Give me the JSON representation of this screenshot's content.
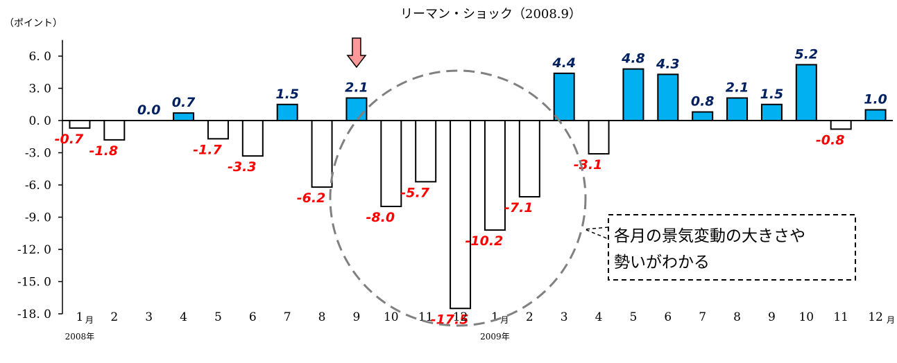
{
  "chart_data": {
    "type": "bar",
    "y_unit_label": "（ポイント）",
    "top_annotation": "リーマン・ショック（2008.9）",
    "ylim": [
      -18,
      7.5
    ],
    "yticks": [
      "6. 0",
      "3. 0",
      "0. 0",
      "-3. 0",
      "-6. 0",
      "-9. 0",
      "-12. 0",
      "-15. 0",
      "-18. 0"
    ],
    "ytick_values": [
      6,
      3,
      0,
      -3,
      -6,
      -9,
      -12,
      -15,
      -18
    ],
    "categories": [
      "1",
      "2",
      "3",
      "4",
      "5",
      "6",
      "7",
      "8",
      "9",
      "10",
      "11",
      "12",
      "1",
      "2",
      "3",
      "4",
      "5",
      "6",
      "7",
      "8",
      "9",
      "10",
      "11",
      "12"
    ],
    "values": [
      -0.7,
      -1.8,
      0.0,
      0.7,
      -1.7,
      -3.3,
      1.5,
      -6.2,
      2.1,
      -8.0,
      -5.7,
      -17.5,
      -10.2,
      -7.1,
      4.4,
      -3.1,
      4.8,
      4.3,
      0.8,
      2.1,
      1.5,
      5.2,
      -0.8,
      1.0
    ],
    "value_labels": [
      "-0.7",
      "-1.8",
      "0.0",
      "0.7",
      "-1.7",
      "-3.3",
      "1.5",
      "-6.2",
      "2.1",
      "-8.0",
      "-5.7",
      "-17.5",
      "-10.2",
      "-7.1",
      "4.4",
      "-3.1",
      "4.8",
      "4.3",
      "0.8",
      "2.1",
      "1.5",
      "5.2",
      "-0.8",
      "1.0"
    ],
    "month_suffix": "月",
    "year_labels": [
      "2008年",
      "2009年"
    ],
    "callout_text": [
      "各月の景気変動の大きさや",
      "勢いがわかる"
    ],
    "colors": {
      "positive_fill": "#00b0f0",
      "negative_fill": "#ffffff",
      "bar_stroke": "#000000",
      "positive_label": "#002060",
      "negative_label": "#ff0000",
      "arrow_fill": "#ff9999",
      "circle_stroke": "#808080"
    }
  }
}
